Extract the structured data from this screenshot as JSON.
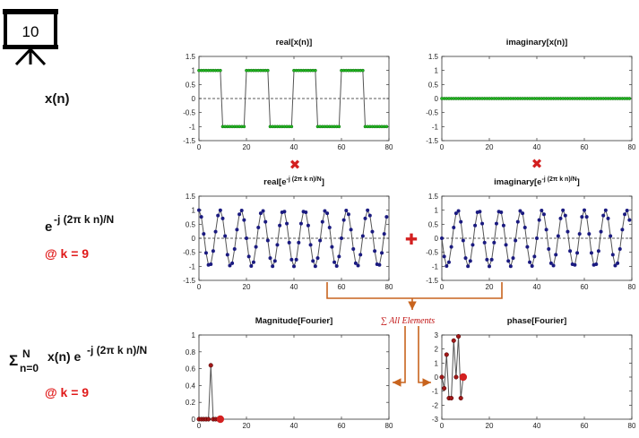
{
  "frame_counter": "10",
  "left_labels": {
    "xn": "x(n)",
    "kernel_base": "e",
    "kernel_exp": "-j (2π k n)/N",
    "k_note": "@ k = 9",
    "sum_sigma": "Σ",
    "sum_upper": "N",
    "sum_lower": "n=0",
    "sum_body": "x(n) e",
    "sum_exp": "-j (2π k n)/N",
    "k_note2": "@ k = 9"
  },
  "operators": {
    "multiply_symbol": "✖",
    "plus_symbol": "✚",
    "sum_annotation": "∑ All Elements"
  },
  "colors": {
    "green_marker": "#22b822",
    "blue_marker": "#1a1a80",
    "red_marker": "#d32020",
    "label_red": "#e01a1a",
    "arrow_orange": "#c8641e",
    "line_gray": "#555555"
  },
  "panels": {
    "real_x": {
      "title": "real[x(n)]",
      "yticks": [
        "1.5",
        "1",
        "0.5",
        "0",
        "-0.5",
        "-1",
        "-1.5"
      ],
      "xticks": [
        "0",
        "20",
        "40",
        "60",
        "80"
      ]
    },
    "imag_x": {
      "title": "imaginary[x(n)]",
      "yticks": [
        "1.5",
        "1",
        "0.5",
        "0",
        "-0.5",
        "-1",
        "-1.5"
      ],
      "xticks": [
        "0",
        "20",
        "40",
        "60",
        "80"
      ]
    },
    "real_e": {
      "title_main": "real[e",
      "title_sup": "-j (2π k n)/N",
      "title_end": "]",
      "yticks": [
        "1.5",
        "1",
        "0.5",
        "0",
        "-0.5",
        "-1",
        "-1.5"
      ],
      "xticks": [
        "0",
        "20",
        "40",
        "60",
        "80"
      ]
    },
    "imag_e": {
      "title_main": "imaginary[e",
      "title_sup": "-j (2π k n)/N",
      "title_end": "]",
      "yticks": [
        "1.5",
        "1",
        "0.5",
        "0",
        "-0.5",
        "-1",
        "-1.5"
      ],
      "xticks": [
        "0",
        "20",
        "40",
        "60",
        "80"
      ]
    },
    "mag": {
      "title": "Magnitude[Fourier]",
      "yticks": [
        "1",
        "0.8",
        "0.6",
        "0.4",
        "0.2",
        "0"
      ],
      "xticks": [
        "0",
        "20",
        "40",
        "60",
        "80"
      ]
    },
    "phase": {
      "title": "phase[Fourier]",
      "yticks": [
        "3",
        "2",
        "1",
        "0",
        "-1",
        "-2",
        "-3"
      ],
      "xticks": [
        "0",
        "20",
        "40",
        "60",
        "80"
      ]
    }
  },
  "chart_data": [
    {
      "type": "line",
      "title": "real[x(n)]",
      "xlim": [
        0,
        80
      ],
      "ylim": [
        -1.5,
        1.5
      ],
      "n_points": 80,
      "description_values": {
        "high": 1,
        "low": -1,
        "period": 20
      },
      "grid": false
    },
    {
      "type": "line",
      "title": "imaginary[x(n)]",
      "xlim": [
        0,
        80
      ],
      "ylim": [
        -1.5,
        1.5
      ],
      "values_constant": 0,
      "n_points": 80,
      "grid": false
    },
    {
      "type": "line",
      "title": "real[e^{-j (2π k n)/N}]",
      "xlim": [
        0,
        80
      ],
      "ylim": [
        -1.5,
        1.5
      ],
      "k": 9,
      "N": 80,
      "grid": false
    },
    {
      "type": "line",
      "title": "imaginary[e^{-j (2π k n)/N}]",
      "xlim": [
        0,
        80
      ],
      "ylim": [
        -1.5,
        1.5
      ],
      "k": 9,
      "N": 80,
      "grid": false
    },
    {
      "type": "line",
      "title": "Magnitude[Fourier]",
      "xlim": [
        0,
        80
      ],
      "ylim": [
        0,
        1
      ],
      "x": [
        0,
        1,
        2,
        3,
        4,
        5,
        6,
        7,
        8,
        9
      ],
      "values": [
        0,
        0,
        0,
        0,
        0,
        0.64,
        0,
        0,
        0,
        0
      ],
      "highlight": {
        "x": 9,
        "y": 0
      }
    },
    {
      "type": "line",
      "title": "phase[Fourier]",
      "xlim": [
        0,
        80
      ],
      "ylim": [
        -3,
        3
      ],
      "x": [
        0,
        1,
        2,
        3,
        4,
        5,
        6,
        7,
        8,
        9
      ],
      "values": [
        0,
        -0.8,
        1.6,
        -1.5,
        -1.5,
        2.6,
        0,
        2.9,
        -1.5,
        0
      ],
      "highlight": {
        "x": 9,
        "y": 0
      }
    }
  ]
}
